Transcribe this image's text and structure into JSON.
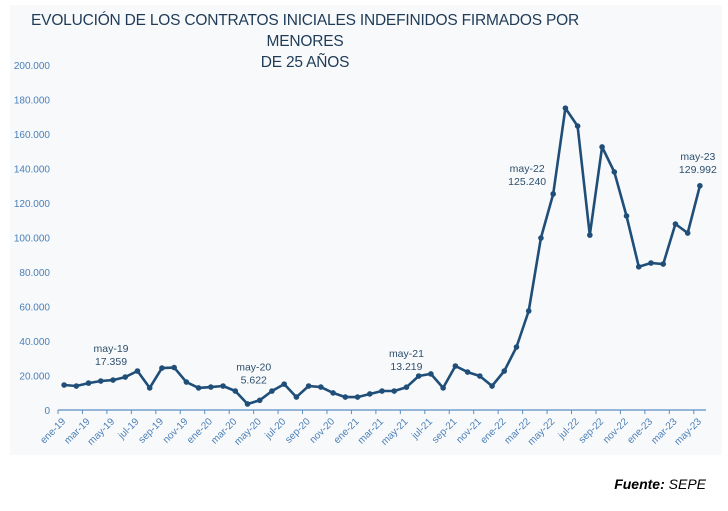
{
  "chart_data": {
    "type": "line",
    "title": "EVOLUCIÓN DE LOS CONTRATOS INICIALES INDEFINIDOS FIRMADOS POR MENORES DE 25 AÑOS",
    "title_lines": [
      "EVOLUCIÓN DE LOS CONTRATOS INICIALES INDEFINIDOS FIRMADOS POR MENORES",
      "DE 25 AÑOS"
    ],
    "xlabel": "",
    "ylabel": "",
    "ylim": [
      0,
      200000
    ],
    "yticks": [
      0,
      20000,
      40000,
      60000,
      80000,
      100000,
      120000,
      140000,
      160000,
      180000,
      200000
    ],
    "ytick_labels": [
      "0",
      "20.000",
      "40.000",
      "60.000",
      "80.000",
      "100.000",
      "120.000",
      "140.000",
      "160.000",
      "180.000",
      "200.000"
    ],
    "grid": false,
    "legend": "none",
    "categories": [
      "ene-19",
      "feb-19",
      "mar-19",
      "abr-19",
      "may-19",
      "jun-19",
      "jul-19",
      "ago-19",
      "sep-19",
      "oct-19",
      "nov-19",
      "dic-19",
      "ene-20",
      "feb-20",
      "mar-20",
      "abr-20",
      "may-20",
      "jun-20",
      "jul-20",
      "ago-20",
      "sep-20",
      "oct-20",
      "nov-20",
      "dic-20",
      "ene-21",
      "feb-21",
      "mar-21",
      "abr-21",
      "may-21",
      "jun-21",
      "jul-21",
      "ago-21",
      "sep-21",
      "oct-21",
      "nov-21",
      "dic-21",
      "ene-22",
      "feb-22",
      "mar-22",
      "abr-22",
      "may-22",
      "jun-22",
      "jul-22",
      "ago-22",
      "sep-22",
      "oct-22",
      "nov-22",
      "dic-22",
      "ene-23",
      "feb-23",
      "mar-23",
      "abr-23",
      "may-23"
    ],
    "xtick_labels": [
      "ene-19",
      "mar-19",
      "may-19",
      "jul-19",
      "sep-19",
      "nov-19",
      "ene-20",
      "mar-20",
      "may-20",
      "jul-20",
      "sep-20",
      "nov-20",
      "ene-21",
      "mar-21",
      "may-21",
      "jul-21",
      "sep-21",
      "nov-21",
      "ene-22",
      "mar-22",
      "may-22",
      "jul-22",
      "sep-22",
      "nov-22",
      "ene-23",
      "mar-23",
      "may-23"
    ],
    "series": [
      {
        "name": "Contratos iniciales indefinidos menores de 25 años",
        "color": "#1f4e79",
        "values": [
          14500,
          13900,
          15600,
          16800,
          17359,
          19100,
          22600,
          12800,
          24300,
          24600,
          16200,
          12800,
          13300,
          13900,
          11000,
          3500,
          5622,
          11000,
          15000,
          7500,
          13900,
          13300,
          9900,
          7500,
          7500,
          9300,
          11000,
          11000,
          13219,
          19700,
          20900,
          12800,
          25500,
          22000,
          19700,
          13900,
          22600,
          36500,
          57400,
          99700,
          125240,
          175000,
          164600,
          101400,
          152500,
          138000,
          112500,
          83000,
          85200,
          84600,
          107800,
          102600,
          129992
        ]
      }
    ],
    "annotations": [
      {
        "category": "may-19",
        "label": "may-19",
        "value_label": "17.359"
      },
      {
        "category": "may-20",
        "label": "may-20",
        "value_label": "5.622"
      },
      {
        "category": "may-21",
        "label": "may-21",
        "value_label": "13.219"
      },
      {
        "category": "may-22",
        "label": "may-22",
        "value_label": "125.240"
      },
      {
        "category": "may-23",
        "label": "may-23",
        "value_label": "129.992"
      }
    ]
  },
  "footer": {
    "source_label": "Fuente:",
    "source_value": "SEPE"
  },
  "colors": {
    "line": "#1f4e79",
    "axis": "#5b8fc5",
    "tick_text": "#4a7fb8",
    "annotation_text": "#2d4f6e",
    "title": "#1f3b57",
    "panel_bg": "#f8f9fa"
  }
}
